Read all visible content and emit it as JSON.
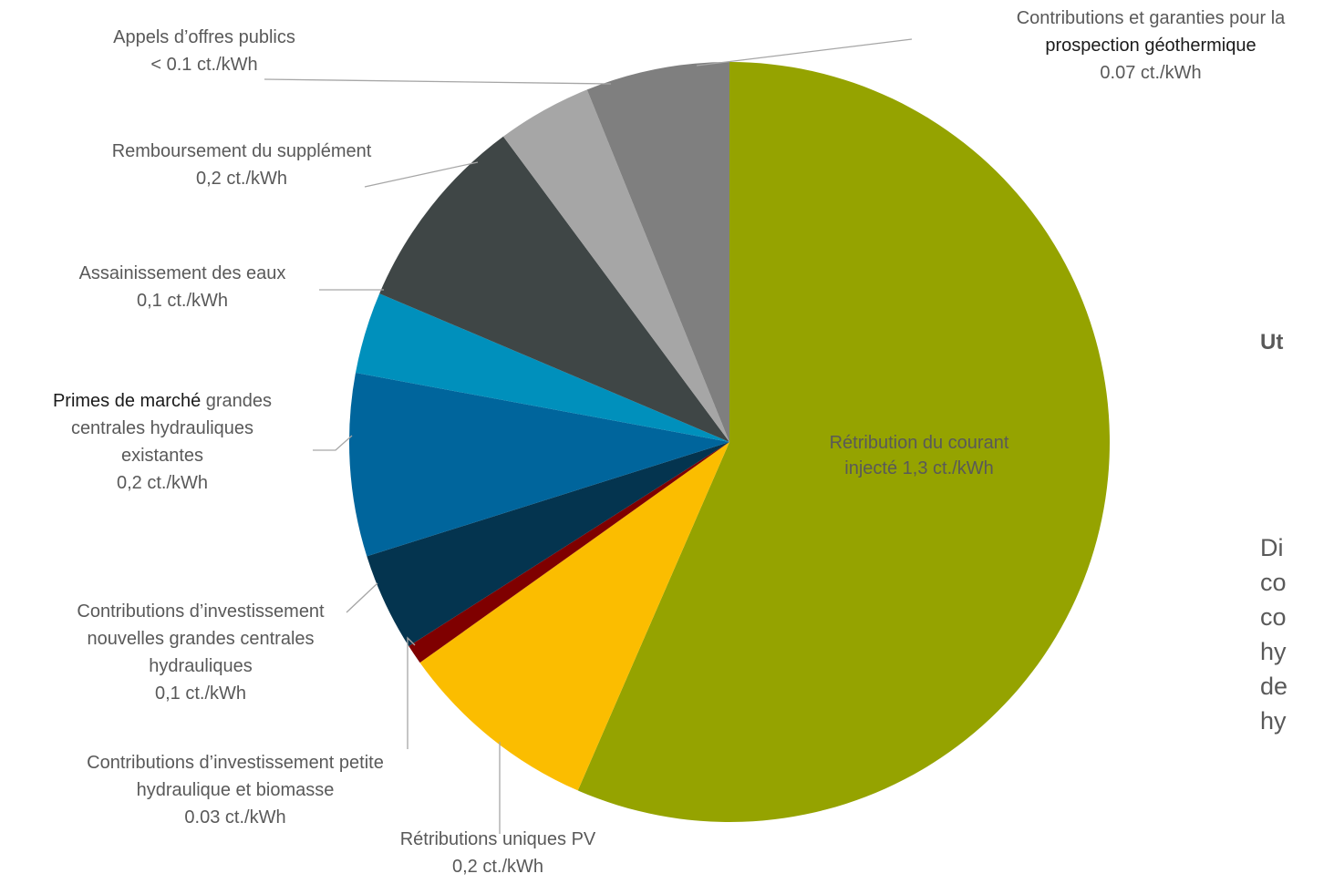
{
  "chart_data": {
    "type": "pie",
    "unit": "ct./kWh",
    "slices": [
      {
        "key": "retribution",
        "label_lines": [
          "Rétribution du courant",
          "injecté  1,3 ct./kWh"
        ],
        "value": 1.3,
        "color": "#95a300"
      },
      {
        "key": "pv",
        "label_lines": [
          "Rétributions uniques PV",
          "0,2 ct./kWh"
        ],
        "value": 0.2,
        "color": "#fbbd00"
      },
      {
        "key": "petite",
        "label_lines": [
          "Contributions d’investissement petite",
          "hydraulique et biomasse",
          "0.03 ct./kWh"
        ],
        "value": 0.03,
        "color": "#7f0000"
      },
      {
        "key": "nouvelles",
        "label_lines": [
          "Contributions d’investissement",
          "nouvelles grandes centrales",
          "hydrauliques",
          "0,1 ct./kWh"
        ],
        "value": 0.1,
        "color": "#04344f"
      },
      {
        "key": "primes",
        "label_lines": [
          "Primes de marché grandes",
          "centrales hydrauliques",
          "existantes",
          "0,2 ct./kWh"
        ],
        "label_emphasis": "Primes de marché",
        "value": 0.2,
        "color": "#00659c"
      },
      {
        "key": "eaux",
        "label_lines": [
          "Assainissement des eaux",
          "0,1 ct./kWh"
        ],
        "value": 0.1,
        "color": "#0090bc"
      },
      {
        "key": "rembours",
        "label_lines": [
          "Remboursement du supplément",
          "0,2 ct./kWh"
        ],
        "value": 0.2,
        "color": "#3f4646"
      },
      {
        "key": "appels",
        "label_lines": [
          "Appels d’offres publics",
          "< 0.1 ct./kWh"
        ],
        "value": 0.1,
        "color": "#a6a6a6"
      },
      {
        "key": "geo",
        "label_lines": [
          "Contributions et garanties pour la",
          "prospection géothermique",
          "0.07 ct./kWh"
        ],
        "label_emphasis_line": 1,
        "value": 0.07,
        "color": "#7f7f7f"
      }
    ]
  },
  "side_panel": {
    "heading": "Ut",
    "body_lines": [
      "Di",
      "co",
      "co",
      "hy",
      "de",
      "hy"
    ]
  }
}
